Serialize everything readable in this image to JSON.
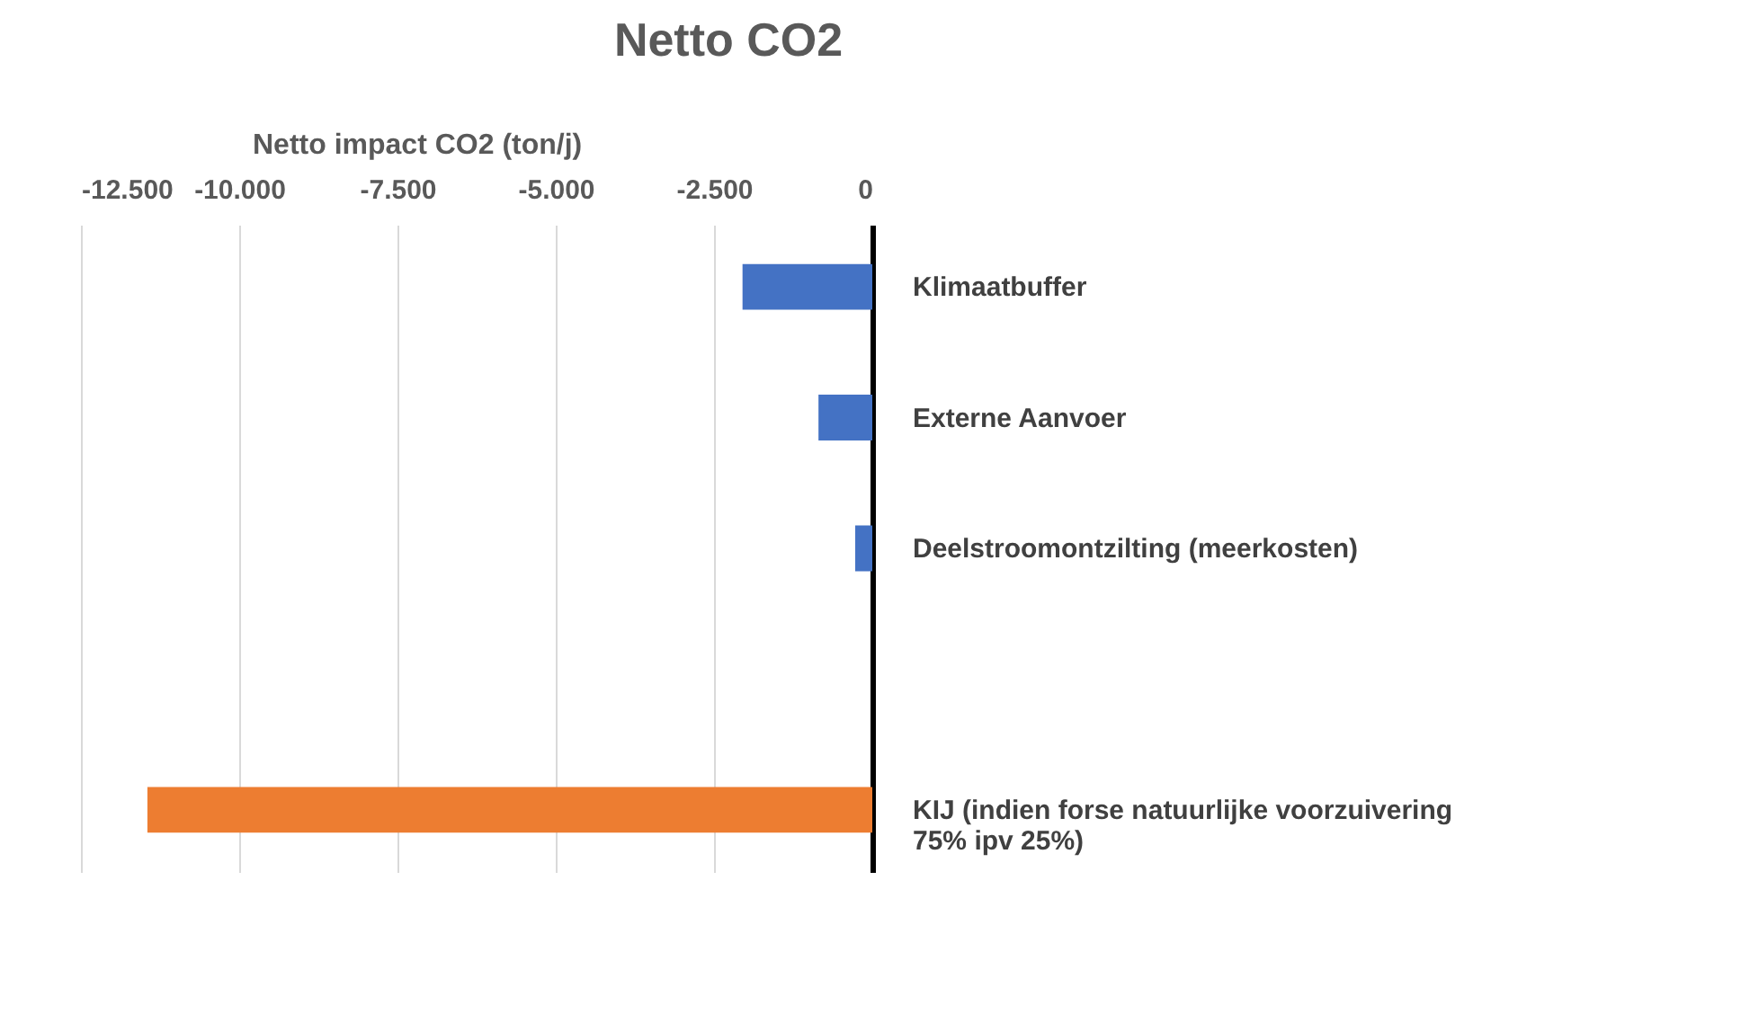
{
  "chart_data": {
    "type": "bar",
    "orientation": "horizontal",
    "title": "Netto CO2",
    "xlabel": "Netto impact CO2 (ton/j)",
    "categories": [
      "Klimaatbuffer",
      "Externe Aanvoer",
      "Deelstroomontzilting (meerkosten)",
      null,
      "KIJ (indien forse natuurlijke voorzuivering 75% ipv 25%)"
    ],
    "values": [
      -2050,
      -850,
      -270,
      null,
      -11450
    ],
    "colors": [
      "#4472c4",
      "#4472c4",
      "#4472c4",
      "#4472c4",
      "#ed7d31"
    ],
    "xlim": [
      -12500,
      0
    ],
    "xticks": [
      {
        "value": -12500,
        "label": "-12.500"
      },
      {
        "value": -10000,
        "label": "-10.000"
      },
      {
        "value": -7500,
        "label": "-7.500"
      },
      {
        "value": -5000,
        "label": "-5.000"
      },
      {
        "value": -2500,
        "label": "-2.500"
      },
      0
    ],
    "grid": "x"
  }
}
